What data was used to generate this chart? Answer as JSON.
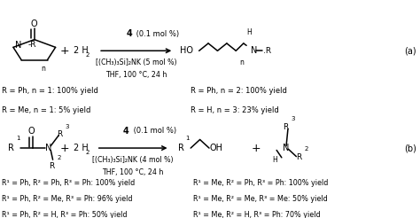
{
  "bg_color": "#ffffff",
  "fig_width": 4.74,
  "fig_height": 2.46,
  "dpi": 100,
  "reaction_a": {
    "arrow_above": "4 (0.1 mol %)",
    "arrow_below1": "[(CH₃)₃Si]₂NK (5 mol %)",
    "arrow_below2": "THF, 100 °C, 24 h",
    "yields_left": [
      "R = Ph, n = 1: 100% yield",
      "R = Me, n = 1: 5% yield"
    ],
    "yields_right": [
      "R = Ph, n = 2: 100% yield",
      "R = H, n = 3: 23% yield"
    ]
  },
  "reaction_b": {
    "arrow_above": "4 (0.1 mol %)",
    "arrow_below1": "[(CH₃)₃Si]₂NK (4 mol %)",
    "arrow_below2": "THF, 100 °C, 24 h",
    "yields_left": [
      "R¹ = Ph, R² = Ph, R³ = Ph: 100% yield",
      "R¹ = Ph, R² = Me, R³ = Ph: 96% yield",
      "R¹ = Ph, R² = H, R³ = Ph: 50% yield"
    ],
    "yields_right": [
      "R¹ = Me, R² = Ph, R³ = Ph: 100% yield",
      "R¹ = Me, R² = Me, R³ = Me: 50% yield",
      "R¹ = Me, R² = H, R³ = Ph: 70% yield"
    ]
  }
}
